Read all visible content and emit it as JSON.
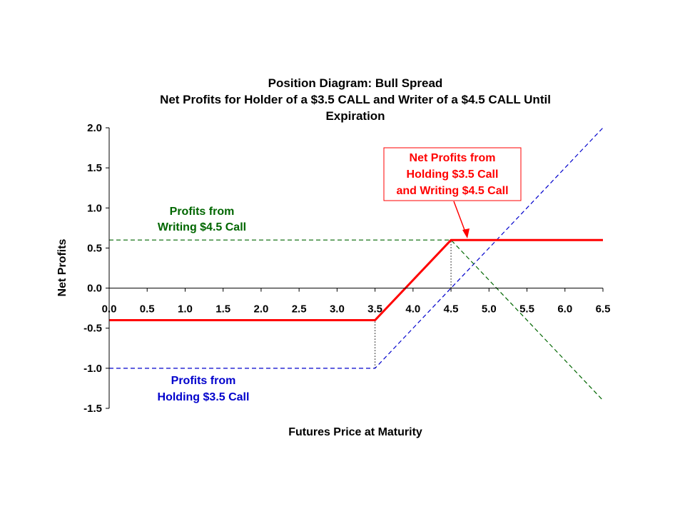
{
  "chart_data": {
    "type": "line",
    "title": [
      "Position Diagram:  Bull Spread",
      "Net Profits for Holder of a $3.5 CALL and Writer of a $4.5 CALL Until",
      "Expiration"
    ],
    "xlabel": "Futures Price at Maturity",
    "ylabel": "Net Profits",
    "xlim": [
      0,
      6.5
    ],
    "ylim": [
      -1.5,
      2.0
    ],
    "x_ticks": [
      "0.0",
      "0.5",
      "1.0",
      "1.5",
      "2.0",
      "2.5",
      "3.0",
      "3.5",
      "4.0",
      "4.5",
      "5.0",
      "5.5",
      "6.0",
      "6.5"
    ],
    "y_ticks": [
      "2.0",
      "1.5",
      "1.0",
      "0.5",
      "0.0",
      "-0.5",
      "-1.0",
      "-1.5"
    ],
    "grid": false,
    "series": [
      {
        "name": "Profits from Holding $3.5 Call",
        "color": "#0000cc",
        "style": "dashed",
        "points": [
          [
            0,
            -1.0
          ],
          [
            3.5,
            -1.0
          ],
          [
            6.5,
            2.0
          ]
        ]
      },
      {
        "name": "Profits from Writing $4.5 Call",
        "color": "#006600",
        "style": "dashed",
        "points": [
          [
            0,
            0.6
          ],
          [
            4.5,
            0.6
          ],
          [
            6.5,
            -1.4
          ]
        ]
      },
      {
        "name": "Net Profits from Holding $3.5 Call and Writing $4.5 Call",
        "color": "#ff0000",
        "style": "solid",
        "points": [
          [
            0,
            -0.4
          ],
          [
            3.5,
            -0.4
          ],
          [
            4.5,
            0.6
          ],
          [
            6.5,
            0.6
          ]
        ]
      }
    ],
    "reference_lines": [
      {
        "x": 3.5,
        "y_from": -1.0,
        "y_to": -0.4,
        "color": "#000000",
        "style": "dotted"
      },
      {
        "x": 4.5,
        "y_from": 0.0,
        "y_to": 0.6,
        "color": "#000000",
        "style": "dotted"
      }
    ],
    "annotations": {
      "writing": {
        "lines": [
          "Profits from",
          "Writing $4.5 Call"
        ],
        "color": "#006600"
      },
      "holding": {
        "lines": [
          "Profits from",
          "Holding $3.5 Call"
        ],
        "color": "#0000cc"
      },
      "net": {
        "lines": [
          "Net Profits from",
          "Holding $3.5 Call",
          "and Writing $4.5 Call"
        ],
        "color": "#ff0000",
        "border": "#ff0000"
      }
    }
  }
}
